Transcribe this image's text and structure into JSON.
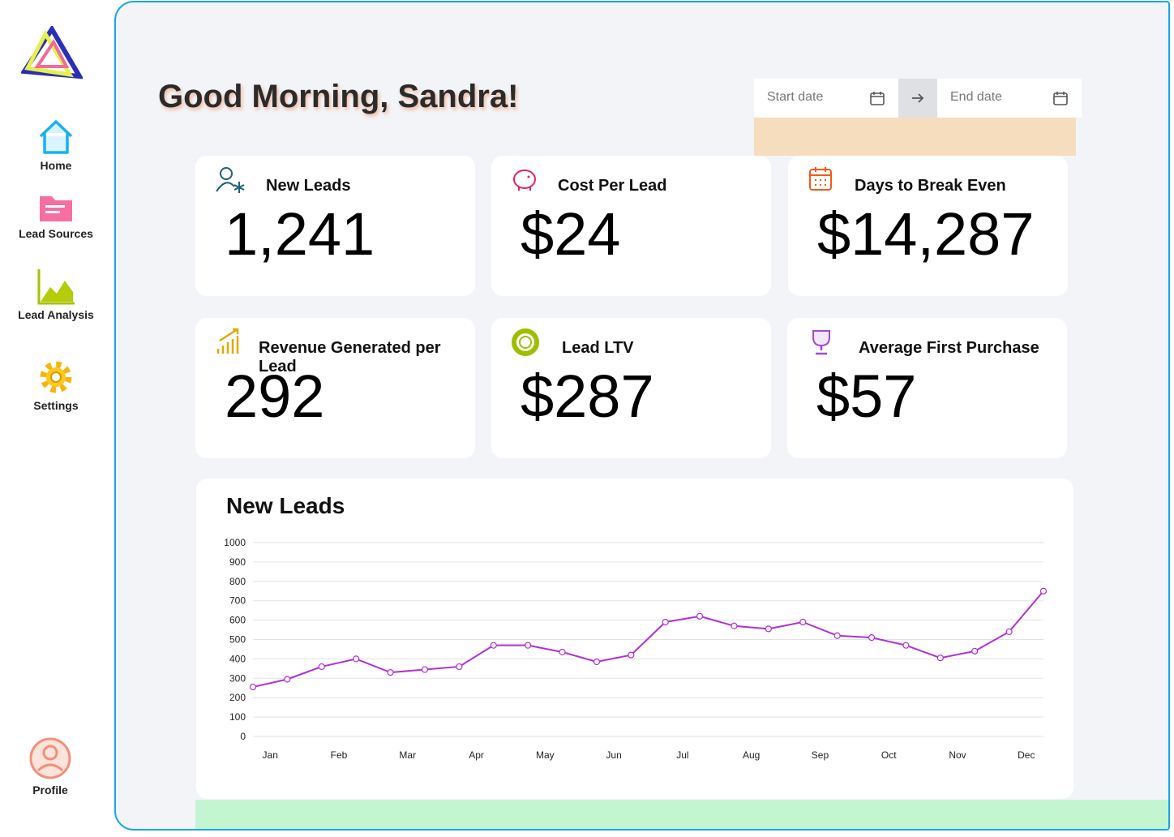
{
  "nav": {
    "items": [
      "Home",
      "Lead Sources",
      "Lead Analysis",
      "Settings"
    ],
    "profile": "Profile"
  },
  "header": {
    "greeting": "Good Morning, Sandra!"
  },
  "date_range": {
    "start": "Start date",
    "end": "End date"
  },
  "cards": [
    {
      "title": "New Leads",
      "value": "1,241"
    },
    {
      "title": "Cost Per Lead",
      "value": "$24"
    },
    {
      "title": "Days to Break Even",
      "value": "$14,287"
    },
    {
      "title": "Revenue Generated per Lead",
      "value": "292"
    },
    {
      "title": "Lead LTV",
      "value": "$287"
    },
    {
      "title": "Average First Purchase",
      "value": "$57"
    }
  ],
  "chart_data": {
    "type": "line",
    "title": "New Leads",
    "categories": [
      "Jan",
      null,
      "Feb",
      null,
      "Mar",
      null,
      "Apr",
      null,
      "May",
      null,
      "Jun",
      null,
      "Jul",
      null,
      "Aug",
      null,
      "Sep",
      null,
      "Oct",
      null,
      "Nov",
      null,
      "Dec",
      null
    ],
    "values": [
      255,
      295,
      360,
      400,
      330,
      345,
      360,
      470,
      470,
      435,
      385,
      420,
      590,
      620,
      570,
      555,
      590,
      520,
      510,
      470,
      405,
      440,
      540,
      750
    ],
    "color": "#b02fd6",
    "ylim": [
      0,
      1000
    ],
    "yticks": [
      0,
      100,
      200,
      300,
      400,
      500,
      600,
      700,
      800,
      900,
      1000
    ],
    "grid": true
  }
}
